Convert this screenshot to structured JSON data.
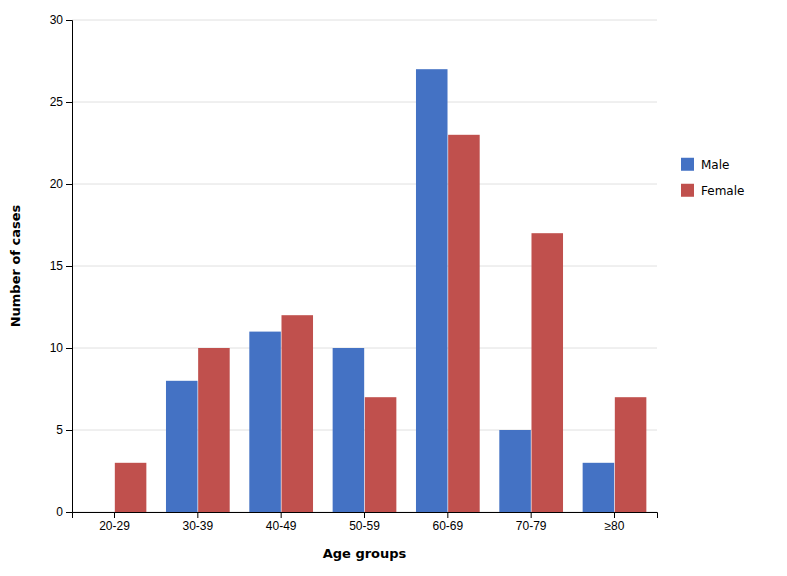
{
  "chart_data": {
    "type": "bar",
    "xlabel": "Age groups",
    "ylabel": "Number of cases",
    "categories": [
      "20-29",
      "30-39",
      "40-49",
      "50-59",
      "60-69",
      "70-79",
      "≥80"
    ],
    "series": [
      {
        "name": "Male",
        "color": "#4472C4",
        "values": [
          0,
          8,
          11,
          10,
          27,
          5,
          3
        ]
      },
      {
        "name": "Female",
        "color": "#C0504D",
        "values": [
          3,
          10,
          12,
          7,
          23,
          17,
          7
        ]
      }
    ],
    "ylim": [
      0,
      30
    ],
    "yticks": [
      0,
      5,
      10,
      15,
      20,
      25,
      30
    ],
    "grid": true,
    "legend": "right"
  }
}
